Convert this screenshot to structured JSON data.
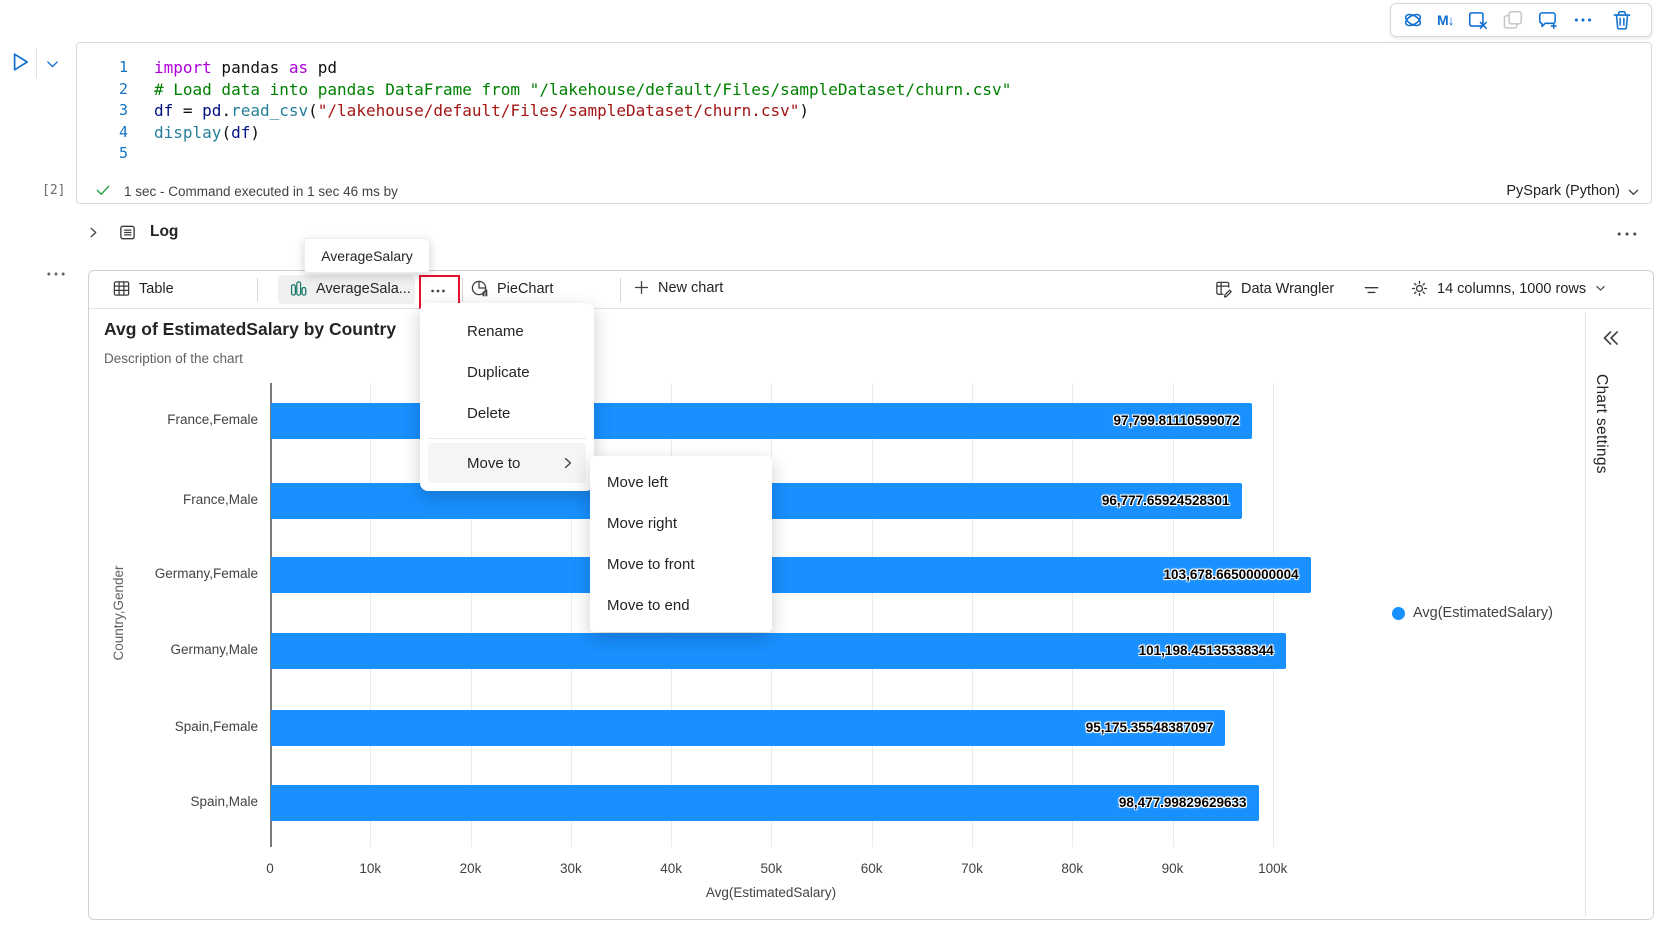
{
  "colors": {
    "accent_blue": "#0f6fd0",
    "bar_blue": "#1890ff",
    "teal_icon": "#117865",
    "red_highlight": "#e8112d",
    "success_green": "#2ea44f"
  },
  "cell_toolbar": {
    "icons": [
      "copilot-icon",
      "markdown-icon",
      "clear-output-icon",
      "duplicate-icon",
      "comment-add-icon",
      "more-icon",
      "delete-icon"
    ]
  },
  "code_cell": {
    "lines": [
      {
        "num": "1",
        "tokens": [
          [
            "kw",
            "import"
          ],
          [
            "pl",
            " pandas "
          ],
          [
            "kw",
            "as"
          ],
          [
            "pl",
            " pd"
          ]
        ]
      },
      {
        "num": "2",
        "tokens": [
          [
            "com",
            "# Load data into pandas DataFrame from \"/lakehouse/default/Files/sampleDataset/churn.csv\""
          ]
        ]
      },
      {
        "num": "3",
        "tokens": [
          [
            "var",
            "df"
          ],
          [
            "pl",
            " = "
          ],
          [
            "var",
            "pd"
          ],
          [
            "pl",
            "."
          ],
          [
            "fn",
            "read_csv"
          ],
          [
            "pl",
            "("
          ],
          [
            "str",
            "\"/lakehouse/default/Files/sampleDataset/churn.csv\""
          ],
          [
            "pl",
            ")"
          ]
        ]
      },
      {
        "num": "4",
        "tokens": [
          [
            "fn",
            "display"
          ],
          [
            "pl",
            "("
          ],
          [
            "var",
            "df"
          ],
          [
            "pl",
            ")"
          ]
        ]
      },
      {
        "num": "5",
        "tokens": []
      }
    ],
    "exec_count": "[2]",
    "status_text": "1 sec - Command executed in 1 sec 46 ms by",
    "kernel": "PySpark (Python)"
  },
  "log_section": {
    "label": "Log"
  },
  "tooltip": {
    "text": "AverageSalary"
  },
  "tabs": {
    "table": "Table",
    "chart": "AverageSala...",
    "pie": "PieChart",
    "new_chart": "New chart",
    "data_wrangler": "Data Wrangler",
    "dims": "14 columns, 1000 rows"
  },
  "context_menu": {
    "items": [
      "Rename",
      "Duplicate",
      "Delete"
    ],
    "move_to": "Move to",
    "submenu": [
      "Move left",
      "Move right",
      "Move to front",
      "Move to end"
    ]
  },
  "chart": {
    "title": "Avg of EstimatedSalary by Country",
    "subtitle": "Description of the chart",
    "legend": "Avg(EstimatedSalary)"
  },
  "sidebar": {
    "title": "Chart settings"
  },
  "chart_data": {
    "type": "bar",
    "orientation": "horizontal",
    "title": "Avg of EstimatedSalary by Country",
    "subtitle": "Description of the chart",
    "categories": [
      "France,Female",
      "France,Male",
      "Germany,Female",
      "Germany,Male",
      "Spain,Female",
      "Spain,Male"
    ],
    "values": [
      97799.81110599072,
      96777.65924528301,
      103678.66500000004,
      101198.45135338344,
      95175.35548387097,
      98477.99829629633
    ],
    "value_labels": [
      "97,799.81110599072",
      "96,777.65924528301",
      "103,678.66500000004",
      "101,198.45135338344",
      "95,175.35548387097",
      "98,477.99829629633"
    ],
    "xlabel": "Avg(EstimatedSalary)",
    "ylabel": "Country,Gender",
    "xlim": [
      0,
      110000
    ],
    "xticks": [
      "0",
      "10k",
      "20k",
      "30k",
      "40k",
      "50k",
      "60k",
      "70k",
      "80k",
      "90k",
      "100k"
    ],
    "series_color": "#1890ff",
    "legend": [
      "Avg(EstimatedSalary)"
    ],
    "legend_position": "right",
    "grid": true
  }
}
